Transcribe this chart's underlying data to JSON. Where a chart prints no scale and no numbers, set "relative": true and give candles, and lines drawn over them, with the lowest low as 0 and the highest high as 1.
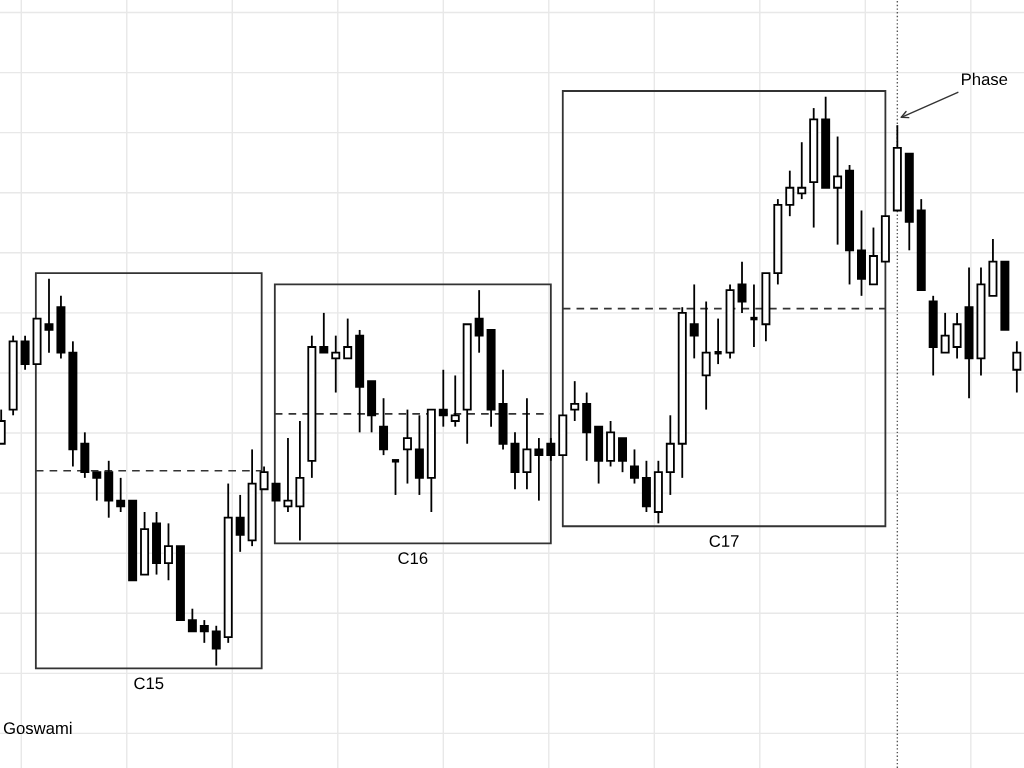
{
  "chart_data": {
    "type": "candlestick",
    "relative": true,
    "grid": true,
    "tick_labels": false,
    "categories": [
      null,
      null,
      null,
      null,
      null,
      null,
      null,
      null,
      null,
      null,
      null,
      null,
      null,
      null,
      null,
      null,
      null,
      null,
      null,
      null,
      null,
      null,
      null,
      null,
      null,
      null,
      null,
      null,
      null,
      null,
      null,
      null,
      null,
      null,
      null,
      null,
      null,
      null,
      null,
      null,
      null,
      null,
      null,
      null,
      null,
      null,
      null,
      null,
      null,
      null,
      null,
      null,
      null,
      null,
      null,
      null,
      null,
      null,
      null,
      null,
      null,
      null,
      null,
      null,
      null,
      null,
      null,
      null,
      null,
      null,
      null,
      null,
      null,
      null,
      null,
      null,
      null,
      null,
      null,
      null,
      null,
      null,
      null,
      null,
      null,
      null
    ],
    "ohlc": [
      [
        0.39,
        0.45,
        0.39,
        0.43
      ],
      [
        0.45,
        0.58,
        0.44,
        0.57
      ],
      [
        0.57,
        0.58,
        0.52,
        0.53
      ],
      [
        0.53,
        0.61,
        0.53,
        0.61
      ],
      [
        0.6,
        0.68,
        0.55,
        0.59
      ],
      [
        0.63,
        0.65,
        0.54,
        0.55
      ],
      [
        0.55,
        0.57,
        0.35,
        0.38
      ],
      [
        0.39,
        0.41,
        0.33,
        0.34
      ],
      [
        0.34,
        0.34,
        0.29,
        0.33
      ],
      [
        0.34,
        0.36,
        0.26,
        0.29
      ],
      [
        0.29,
        0.33,
        0.27,
        0.28
      ],
      [
        0.29,
        0.29,
        0.15,
        0.15
      ],
      [
        0.16,
        0.27,
        0.16,
        0.24
      ],
      [
        0.25,
        0.27,
        0.16,
        0.18
      ],
      [
        0.18,
        0.25,
        0.15,
        0.21
      ],
      [
        0.21,
        0.21,
        0.08,
        0.08
      ],
      [
        0.08,
        0.1,
        0.06,
        0.06
      ],
      [
        0.07,
        0.08,
        0.04,
        0.06
      ],
      [
        0.06,
        0.07,
        0.0,
        0.03
      ],
      [
        0.05,
        0.32,
        0.04,
        0.26
      ],
      [
        0.26,
        0.3,
        0.2,
        0.23
      ],
      [
        0.22,
        0.38,
        0.21,
        0.32
      ],
      [
        0.31,
        0.35,
        0.31,
        0.34
      ],
      [
        0.32,
        0.32,
        0.29,
        0.29
      ],
      [
        0.28,
        0.4,
        0.27,
        0.29
      ],
      [
        0.28,
        0.43,
        0.22,
        0.33
      ],
      [
        0.36,
        0.58,
        0.33,
        0.56
      ],
      [
        0.56,
        0.62,
        0.55,
        0.55
      ],
      [
        0.54,
        0.58,
        0.48,
        0.55
      ],
      [
        0.54,
        0.61,
        0.54,
        0.56
      ],
      [
        0.58,
        0.59,
        0.41,
        0.49
      ],
      [
        0.5,
        0.5,
        0.41,
        0.44
      ],
      [
        0.42,
        0.47,
        0.37,
        0.38
      ],
      [
        0.36,
        0.36,
        0.3,
        0.36
      ],
      [
        0.38,
        0.45,
        0.32,
        0.4
      ],
      [
        0.38,
        0.44,
        0.3,
        0.33
      ],
      [
        0.33,
        0.45,
        0.27,
        0.45
      ],
      [
        0.45,
        0.52,
        0.42,
        0.44
      ],
      [
        0.43,
        0.51,
        0.42,
        0.44
      ],
      [
        0.45,
        0.6,
        0.39,
        0.6
      ],
      [
        0.61,
        0.66,
        0.55,
        0.58
      ],
      [
        0.59,
        0.59,
        0.42,
        0.45
      ],
      [
        0.46,
        0.52,
        0.38,
        0.39
      ],
      [
        0.39,
        0.41,
        0.31,
        0.34
      ],
      [
        0.34,
        0.47,
        0.31,
        0.38
      ],
      [
        0.38,
        0.4,
        0.29,
        0.37
      ],
      [
        0.39,
        0.4,
        0.36,
        0.37
      ],
      [
        0.37,
        0.44,
        0.37,
        0.44
      ],
      [
        0.45,
        0.5,
        0.43,
        0.46
      ],
      [
        0.46,
        0.48,
        0.36,
        0.41
      ],
      [
        0.42,
        0.42,
        0.32,
        0.36
      ],
      [
        0.36,
        0.43,
        0.35,
        0.41
      ],
      [
        0.4,
        0.4,
        0.34,
        0.36
      ],
      [
        0.35,
        0.38,
        0.32,
        0.33
      ],
      [
        0.33,
        0.36,
        0.27,
        0.28
      ],
      [
        0.27,
        0.36,
        0.25,
        0.34
      ],
      [
        0.34,
        0.44,
        0.3,
        0.39
      ],
      [
        0.39,
        0.63,
        0.33,
        0.62
      ],
      [
        0.6,
        0.67,
        0.54,
        0.58
      ],
      [
        0.51,
        0.64,
        0.45,
        0.55
      ],
      [
        0.55,
        0.61,
        0.53,
        0.55
      ],
      [
        0.55,
        0.67,
        0.54,
        0.66
      ],
      [
        0.67,
        0.71,
        0.62,
        0.64
      ],
      [
        0.61,
        0.67,
        0.56,
        0.61
      ],
      [
        0.6,
        0.69,
        0.57,
        0.69
      ],
      [
        0.69,
        0.82,
        0.67,
        0.81
      ],
      [
        0.81,
        0.87,
        0.79,
        0.84
      ],
      [
        0.83,
        0.92,
        0.82,
        0.84
      ],
      [
        0.85,
        0.98,
        0.77,
        0.96
      ],
      [
        0.96,
        1.0,
        0.84,
        0.84
      ],
      [
        0.84,
        0.93,
        0.74,
        0.86
      ],
      [
        0.87,
        0.88,
        0.67,
        0.73
      ],
      [
        0.73,
        0.8,
        0.65,
        0.68
      ],
      [
        0.67,
        0.77,
        0.67,
        0.72
      ],
      [
        0.71,
        0.79,
        0.71,
        0.79
      ],
      [
        0.8,
        0.95,
        0.8,
        0.91
      ],
      [
        0.9,
        0.9,
        0.73,
        0.78
      ],
      [
        0.8,
        0.82,
        0.66,
        0.66
      ],
      [
        0.64,
        0.65,
        0.51,
        0.56
      ],
      [
        0.55,
        0.62,
        0.55,
        0.58
      ],
      [
        0.56,
        0.62,
        0.54,
        0.6
      ],
      [
        0.63,
        0.7,
        0.47,
        0.54
      ],
      [
        0.54,
        0.7,
        0.51,
        0.67
      ],
      [
        0.65,
        0.75,
        0.65,
        0.71
      ],
      [
        0.71,
        0.71,
        0.59,
        0.59
      ],
      [
        0.52,
        0.57,
        0.48,
        0.55
      ]
    ],
    "annotations": [
      "C15",
      "C16",
      "C17",
      "Phase",
      "Goswami"
    ]
  }
}
